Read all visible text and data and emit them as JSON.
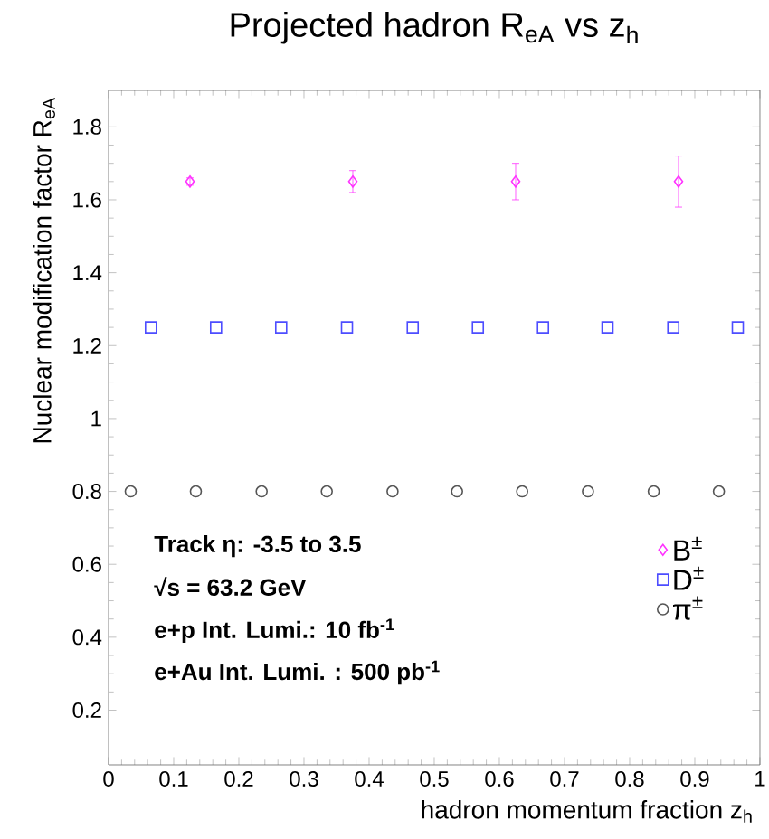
{
  "chart_data": {
    "type": "scatter",
    "title": "Projected hadron R$_{eA}$ vs z$_{h}$",
    "xlabel": "hadron momentum fraction z$_{h}$",
    "ylabel": "Nuclear modification factor R$_{eA}$",
    "xlim": [
      0,
      1
    ],
    "ylim": [
      0.05,
      1.9
    ],
    "xticks": [
      0,
      0.1,
      0.2,
      0.3,
      0.4,
      0.5,
      0.6,
      0.7,
      0.8,
      0.9,
      1
    ],
    "yticks": [
      0.2,
      0.4,
      0.6,
      0.8,
      1,
      1.2,
      1.4,
      1.6,
      1.8
    ],
    "legend": "bottom right",
    "series": [
      {
        "name": "B$^{±}$",
        "color": "#ff33ff",
        "marker": "diamond",
        "x": [
          0.125,
          0.375,
          0.625,
          0.875
        ],
        "values": [
          1.65,
          1.65,
          1.65,
          1.65
        ],
        "errors": [
          0.01,
          0.03,
          0.05,
          0.07
        ]
      },
      {
        "name": "D$^{±}$",
        "color": "#4d4dff",
        "marker": "square",
        "x": [
          0.065,
          0.165,
          0.265,
          0.366,
          0.467,
          0.567,
          0.667,
          0.766,
          0.867,
          0.966
        ],
        "values": [
          1.25,
          1.25,
          1.25,
          1.25,
          1.25,
          1.25,
          1.25,
          1.25,
          1.25,
          1.25
        ]
      },
      {
        "name": "π$^{±}$",
        "color": "#555555",
        "marker": "circle",
        "x": [
          0.034,
          0.134,
          0.235,
          0.335,
          0.436,
          0.535,
          0.635,
          0.736,
          0.837,
          0.937
        ],
        "values": [
          0.8,
          0.8,
          0.8,
          0.8,
          0.8,
          0.8,
          0.8,
          0.8,
          0.8,
          0.8
        ]
      }
    ],
    "annotations": [
      "Track  η: -3.5 to 3.5",
      "√s = 63.2 GeV",
      "e+p Int. Lumi.: 10 fb$^{-1}$",
      "e+Au Int. Lumi. : 500 pb$^{-1}$"
    ]
  }
}
